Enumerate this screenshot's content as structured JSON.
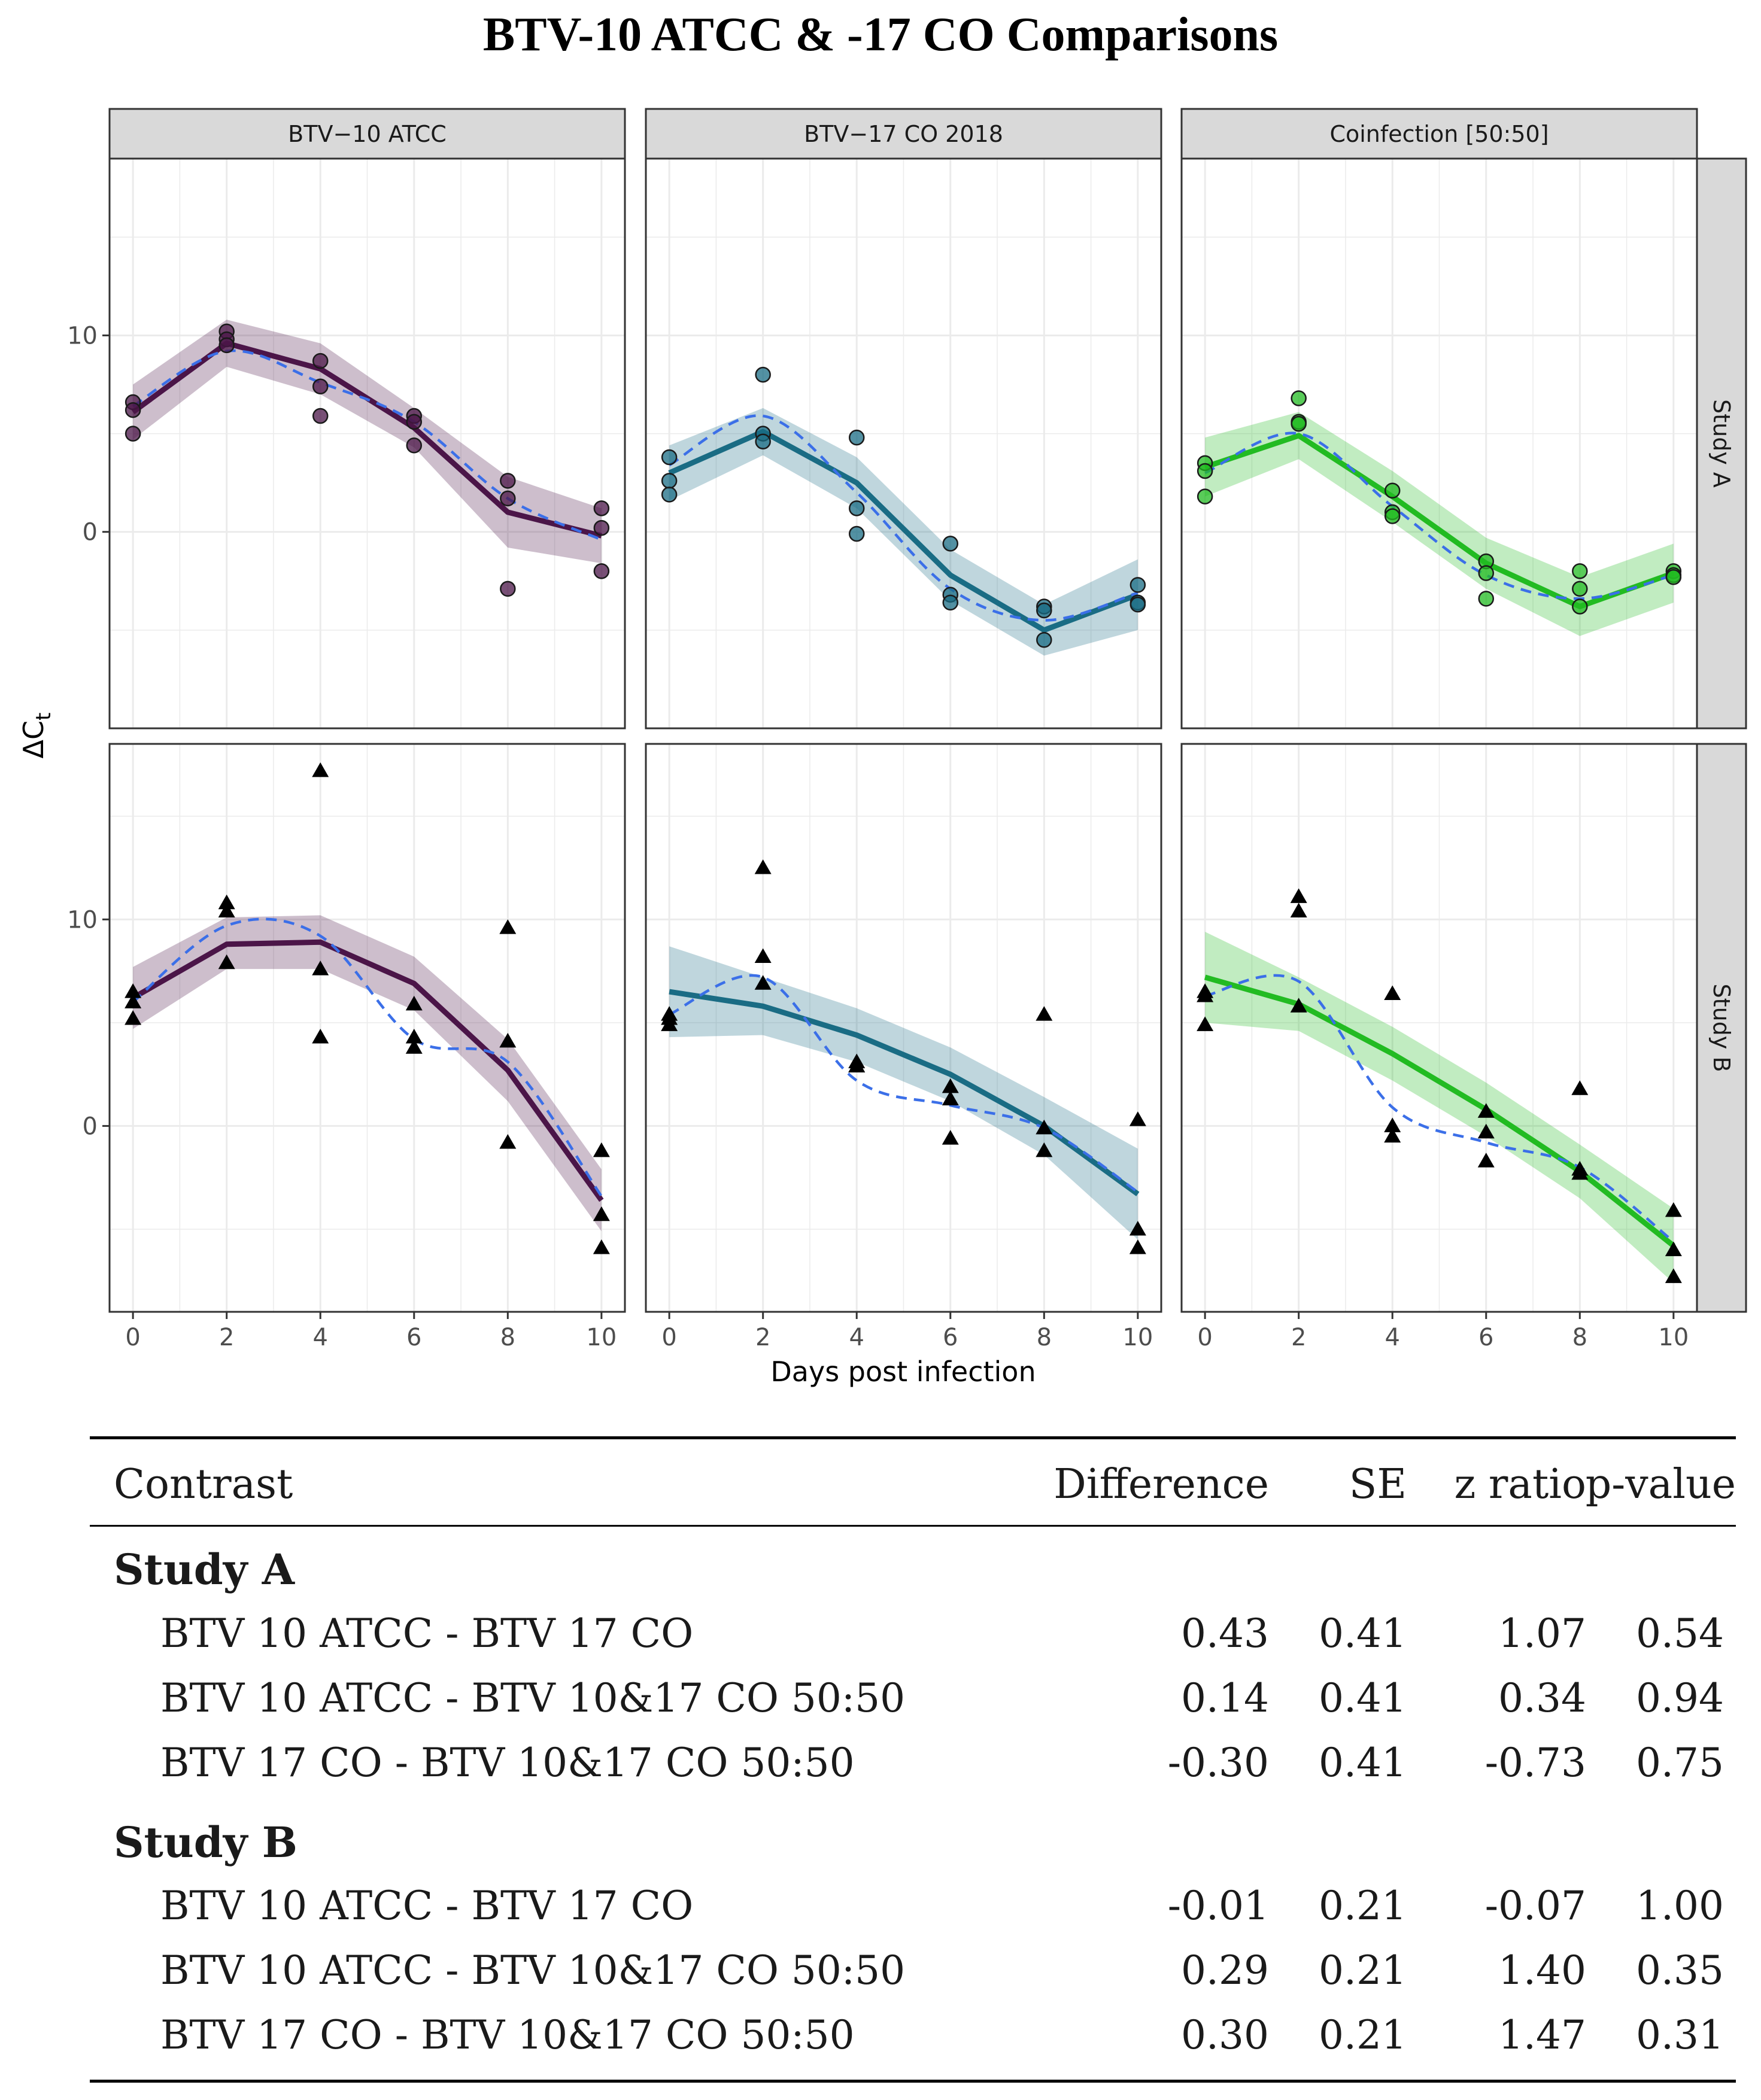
{
  "figure": {
    "title": "BTV-10 ATCC & -17 CO Comparisons"
  },
  "chart_data": {
    "type": "line",
    "xlabel": "Days post infection",
    "ylabel": "ΔCt",
    "ylabel_main": "ΔC",
    "ylabel_sub": "t",
    "xlim": [
      -0.5,
      10.5
    ],
    "xticks": [
      0,
      2,
      4,
      6,
      8,
      10
    ],
    "facet_columns": [
      "BTV−10 ATCC",
      "BTV−17 CO 2018",
      "Coinfection [50:50]"
    ],
    "facet_rows": [
      "Study A",
      "Study B"
    ],
    "colors": {
      "BTV−10 ATCC": "#4b1548",
      "BTV−17 CO 2018": "#1a6c84",
      "Coinfection [50:50]": "#22bb22",
      "loess": "#3b6fe8",
      "panel_grid": "#ebebeb",
      "strip_fill": "#d9d9d9"
    },
    "panels": [
      {
        "row": "Study A",
        "column": "BTV−10 ATCC",
        "ylim": [
          -10,
          19
        ],
        "yticks": [
          0,
          10
        ],
        "marker": "circle",
        "points": [
          [
            0,
            6.6
          ],
          [
            0,
            6.2
          ],
          [
            0,
            5.0
          ],
          [
            2,
            10.2
          ],
          [
            2,
            9.8
          ],
          [
            2,
            9.5
          ],
          [
            4,
            8.7
          ],
          [
            4,
            7.4
          ],
          [
            4,
            5.9
          ],
          [
            6,
            5.9
          ],
          [
            6,
            5.6
          ],
          [
            6,
            4.4
          ],
          [
            8,
            2.6
          ],
          [
            8,
            1.7
          ],
          [
            8,
            -2.9
          ],
          [
            10,
            1.2
          ],
          [
            10,
            0.2
          ],
          [
            10,
            -2.0
          ]
        ],
        "fit": [
          6.1,
          9.6,
          8.3,
          5.3,
          1.0,
          -0.2
        ],
        "lower": [
          4.7,
          8.4,
          7.0,
          4.3,
          -0.8,
          -1.6
        ],
        "upper": [
          7.5,
          10.8,
          9.6,
          6.3,
          2.8,
          1.2
        ],
        "loess": [
          6.4,
          9.2,
          7.6,
          5.6,
          1.7,
          -0.4
        ]
      },
      {
        "row": "Study A",
        "column": "BTV−17 CO 2018",
        "ylim": [
          -10,
          19
        ],
        "yticks": [
          0,
          10
        ],
        "marker": "circle",
        "points": [
          [
            0,
            3.8
          ],
          [
            0,
            2.6
          ],
          [
            0,
            1.9
          ],
          [
            2,
            8.0
          ],
          [
            2,
            5.0
          ],
          [
            2,
            4.6
          ],
          [
            4,
            4.8
          ],
          [
            4,
            1.2
          ],
          [
            4,
            -0.1
          ],
          [
            6,
            -0.6
          ],
          [
            6,
            -3.2
          ],
          [
            6,
            -3.6
          ],
          [
            8,
            -3.8
          ],
          [
            8,
            -4.0
          ],
          [
            8,
            -5.5
          ],
          [
            10,
            -2.7
          ],
          [
            10,
            -3.6
          ],
          [
            10,
            -3.7
          ]
        ],
        "fit": [
          3.0,
          5.1,
          2.5,
          -2.2,
          -5.0,
          -3.2
        ],
        "lower": [
          1.6,
          3.9,
          1.2,
          -3.5,
          -6.3,
          -5.0
        ],
        "upper": [
          4.4,
          6.3,
          3.8,
          -0.9,
          -3.7,
          -1.4
        ],
        "loess": [
          3.4,
          5.9,
          2.0,
          -2.9,
          -4.5,
          -3.1
        ]
      },
      {
        "row": "Study A",
        "column": "Coinfection [50:50]",
        "ylim": [
          -10,
          19
        ],
        "yticks": [
          0,
          10
        ],
        "marker": "circle",
        "points": [
          [
            0,
            3.5
          ],
          [
            0,
            3.1
          ],
          [
            0,
            1.8
          ],
          [
            2,
            6.8
          ],
          [
            2,
            5.6
          ],
          [
            2,
            5.5
          ],
          [
            4,
            2.1
          ],
          [
            4,
            1.0
          ],
          [
            4,
            0.8
          ],
          [
            6,
            -1.5
          ],
          [
            6,
            -2.1
          ],
          [
            6,
            -3.4
          ],
          [
            8,
            -2.0
          ],
          [
            8,
            -2.9
          ],
          [
            8,
            -3.8
          ],
          [
            10,
            -2.0
          ],
          [
            10,
            -2.2
          ],
          [
            10,
            -2.3
          ]
        ],
        "fit": [
          3.3,
          4.9,
          1.8,
          -1.6,
          -3.8,
          -2.1
        ],
        "lower": [
          1.8,
          3.7,
          0.5,
          -2.9,
          -5.3,
          -3.6
        ],
        "upper": [
          4.8,
          6.1,
          3.1,
          -0.3,
          -2.3,
          -0.6
        ],
        "loess": [
          3.0,
          5.0,
          1.3,
          -2.2,
          -3.4,
          -2.2
        ]
      },
      {
        "row": "Study B",
        "column": "BTV−10 ATCC",
        "ylim": [
          -9,
          18.5
        ],
        "yticks": [
          0,
          10
        ],
        "marker": "triangle",
        "points": [
          [
            0,
            6.5
          ],
          [
            0,
            6.0
          ],
          [
            0,
            5.2
          ],
          [
            2,
            10.8
          ],
          [
            2,
            10.4
          ],
          [
            2,
            7.9
          ],
          [
            4,
            17.2
          ],
          [
            4,
            7.6
          ],
          [
            4,
            4.3
          ],
          [
            6,
            5.9
          ],
          [
            6,
            4.3
          ],
          [
            6,
            3.8
          ],
          [
            8,
            9.6
          ],
          [
            8,
            4.1
          ],
          [
            8,
            -0.8
          ],
          [
            10,
            -1.2
          ],
          [
            10,
            -4.3
          ],
          [
            10,
            -5.9
          ]
        ],
        "fit": [
          6.2,
          8.8,
          8.9,
          6.9,
          2.7,
          -3.6
        ],
        "lower": [
          4.7,
          7.6,
          7.6,
          5.6,
          1.2,
          -5.1
        ],
        "upper": [
          7.7,
          10.1,
          10.2,
          8.2,
          4.2,
          -2.1
        ],
        "loess": [
          6.0,
          9.7,
          9.2,
          4.2,
          3.1,
          -3.4
        ]
      },
      {
        "row": "Study B",
        "column": "BTV−17 CO 2018",
        "ylim": [
          -9,
          18.5
        ],
        "yticks": [
          0,
          10
        ],
        "marker": "triangle",
        "points": [
          [
            0,
            5.4
          ],
          [
            0,
            5.2
          ],
          [
            0,
            4.9
          ],
          [
            2,
            12.5
          ],
          [
            2,
            8.2
          ],
          [
            2,
            6.9
          ],
          [
            4,
            3.1
          ],
          [
            4,
            2.9
          ],
          [
            4,
            2.9
          ],
          [
            6,
            1.9
          ],
          [
            6,
            1.3
          ],
          [
            6,
            -0.6
          ],
          [
            8,
            5.4
          ],
          [
            8,
            -0.1
          ],
          [
            8,
            -1.2
          ],
          [
            10,
            0.3
          ],
          [
            10,
            -5.0
          ],
          [
            10,
            -5.9
          ]
        ],
        "fit": [
          6.5,
          5.8,
          4.4,
          2.5,
          0.0,
          -3.3
        ],
        "lower": [
          4.3,
          4.4,
          3.1,
          1.2,
          -1.4,
          -5.5
        ],
        "upper": [
          8.7,
          7.2,
          5.7,
          3.8,
          1.4,
          -1.1
        ],
        "loess": [
          5.4,
          7.2,
          2.2,
          1.0,
          -0.1,
          -3.2
        ]
      },
      {
        "row": "Study B",
        "column": "Coinfection [50:50]",
        "ylim": [
          -9,
          18.5
        ],
        "yticks": [
          0,
          10
        ],
        "marker": "triangle",
        "points": [
          [
            0,
            6.5
          ],
          [
            0,
            6.3
          ],
          [
            0,
            4.9
          ],
          [
            2,
            11.1
          ],
          [
            2,
            10.4
          ],
          [
            2,
            5.8
          ],
          [
            4,
            6.4
          ],
          [
            4,
            0.0
          ],
          [
            4,
            -0.5
          ],
          [
            6,
            0.7
          ],
          [
            6,
            -0.3
          ],
          [
            6,
            -1.7
          ],
          [
            8,
            1.8
          ],
          [
            8,
            -2.1
          ],
          [
            8,
            -2.3
          ],
          [
            10,
            -4.1
          ],
          [
            10,
            -6.0
          ],
          [
            10,
            -7.3
          ]
        ],
        "fit": [
          7.2,
          5.9,
          3.5,
          0.8,
          -2.2,
          -5.8
        ],
        "lower": [
          5.0,
          4.6,
          2.2,
          -0.5,
          -3.5,
          -7.6
        ],
        "upper": [
          9.4,
          7.2,
          4.8,
          2.1,
          -0.9,
          -4.0
        ],
        "loess": [
          6.3,
          7.0,
          0.9,
          -0.8,
          -2.0,
          -5.6
        ]
      }
    ]
  },
  "table": {
    "headers": {
      "contrast": "Contrast",
      "difference": "Difference",
      "se": "SE",
      "z_ratio": "z ratio",
      "p_value": "p-value"
    },
    "groups": [
      {
        "label": "Study A",
        "rows": [
          {
            "contrast": "BTV 10 ATCC - BTV 17 CO",
            "difference": "0.43",
            "se": "0.41",
            "z_ratio": "1.07",
            "p_value": "0.54"
          },
          {
            "contrast": "BTV 10 ATCC - BTV 10&17 CO 50:50",
            "difference": "0.14",
            "se": "0.41",
            "z_ratio": "0.34",
            "p_value": "0.94"
          },
          {
            "contrast": "BTV 17 CO - BTV 10&17 CO 50:50",
            "difference": "-0.30",
            "se": "0.41",
            "z_ratio": "-0.73",
            "p_value": "0.75"
          }
        ]
      },
      {
        "label": "Study B",
        "rows": [
          {
            "contrast": "BTV 10 ATCC - BTV 17 CO",
            "difference": "-0.01",
            "se": "0.21",
            "z_ratio": "-0.07",
            "p_value": "1.00"
          },
          {
            "contrast": "BTV 10 ATCC - BTV 10&17 CO 50:50",
            "difference": "0.29",
            "se": "0.21",
            "z_ratio": "1.40",
            "p_value": "0.35"
          },
          {
            "contrast": "BTV 17 CO - BTV 10&17 CO 50:50",
            "difference": "0.30",
            "se": "0.21",
            "z_ratio": "1.47",
            "p_value": "0.31"
          }
        ]
      }
    ]
  }
}
